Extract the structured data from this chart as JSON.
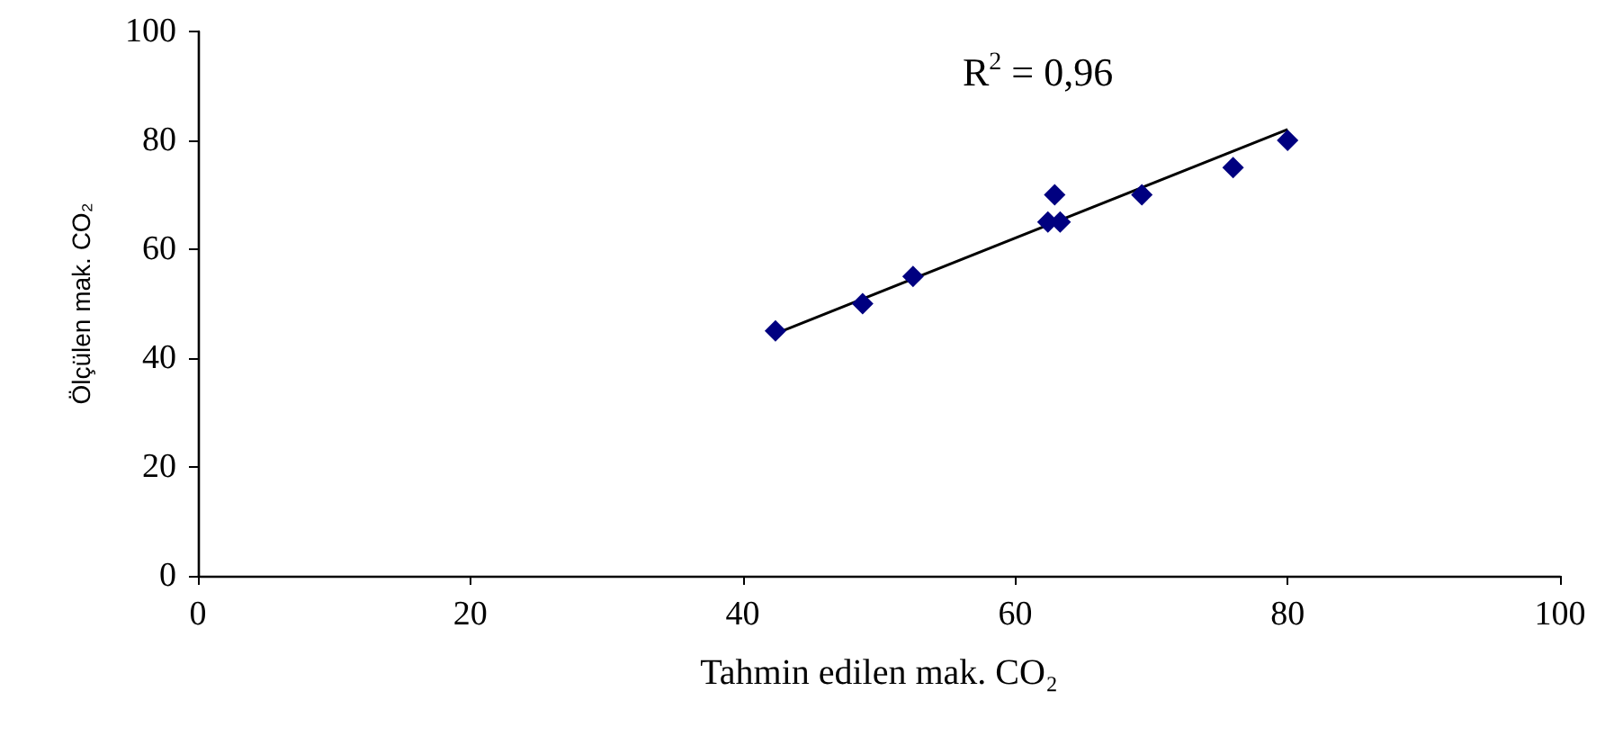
{
  "chart_data": {
    "type": "scatter",
    "xlabel": "Tahmin edilen mak. CO₂",
    "ylabel": "Ölçülen mak. CO₂",
    "annotations": [
      "R$^{2}$ = 0,96"
    ],
    "xlim": [
      0,
      100
    ],
    "xticks": [
      0,
      20,
      40,
      60,
      80,
      100
    ],
    "ylim": [
      0,
      100
    ],
    "yticks": [
      0,
      20,
      40,
      60,
      80,
      100
    ],
    "grid": false,
    "marker": "diamond",
    "series": [
      {
        "color": "#000080",
        "x": [
          42.4,
          48.8,
          52.5,
          62.4,
          62.9,
          63.3,
          69.3,
          76,
          80
        ],
        "values": [
          45,
          50,
          55,
          65,
          70,
          65,
          70,
          75,
          80
        ]
      },
      {
        "type": "line",
        "color": "#000000",
        "marker": "none",
        "x": [
          42.4,
          80
        ],
        "values": [
          44.5,
          82
        ]
      }
    ]
  }
}
